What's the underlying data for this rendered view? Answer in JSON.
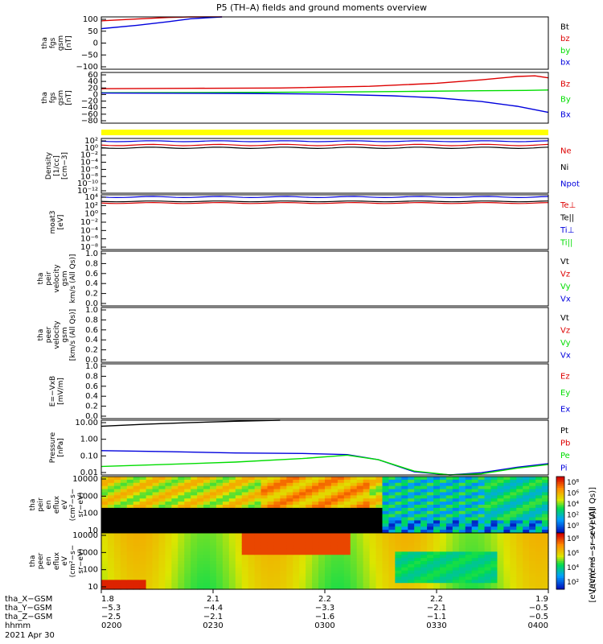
{
  "title": "P5 (TH–A) fields and ground moments overview",
  "colors": {
    "black": "#000000",
    "red": "#dd0000",
    "green": "#00dd00",
    "blue": "#0000dd",
    "yellow": "#ffff00",
    "orange": "#ff9a00",
    "darkred": "#cc0000"
  },
  "chart_data": [
    {
      "type": "line",
      "panel": "fgs_gsm",
      "ylabel": [
        "tha",
        "fgs",
        "gsm",
        "[nT]"
      ],
      "ylim": [
        -100,
        100
      ],
      "yticks": [
        "100",
        "50",
        "0",
        "−50",
        "−100"
      ],
      "legend": [
        {
          "label": "Bt",
          "color": "black"
        },
        {
          "label": "bz",
          "color": "red"
        },
        {
          "label": "by",
          "color": "green"
        },
        {
          "label": "bx",
          "color": "blue"
        }
      ],
      "series": [
        {
          "name": "bz",
          "color": "red",
          "x": [
            0,
            0.08,
            0.15,
            0.2,
            0.27
          ],
          "values": [
            85,
            92,
            98,
            104,
            112
          ]
        },
        {
          "name": "bx",
          "color": "blue",
          "x": [
            0,
            0.08,
            0.15,
            0.2,
            0.27
          ],
          "values": [
            55,
            68,
            82,
            93,
            104
          ]
        }
      ]
    },
    {
      "type": "line",
      "panel": "fgs_gsm_zoom",
      "ylabel": [
        "tha",
        "fgs",
        "gsm",
        "[nT]"
      ],
      "ylim": [
        -90,
        60
      ],
      "yticks": [
        "60",
        "40",
        "20",
        "0",
        "−20",
        "−40",
        "−60",
        "−80"
      ],
      "legend": [
        {
          "label": "Bz",
          "color": "red"
        },
        {
          "label": "By",
          "color": "green"
        },
        {
          "label": "Bx",
          "color": "blue"
        }
      ],
      "series": [
        {
          "name": "Bz",
          "color": "red",
          "x": [
            0,
            0.2,
            0.4,
            0.6,
            0.75,
            0.85,
            0.93,
            0.97,
            1
          ],
          "values": [
            12,
            13,
            14,
            19,
            28,
            38,
            48,
            50,
            44
          ]
        },
        {
          "name": "By",
          "color": "green",
          "x": [
            0,
            0.3,
            0.5,
            0.7,
            0.85,
            0.95,
            1
          ],
          "values": [
            0,
            1,
            2,
            4,
            6,
            7,
            8
          ]
        },
        {
          "name": "Bx",
          "color": "blue",
          "x": [
            0,
            0.3,
            0.5,
            0.65,
            0.75,
            0.85,
            0.93,
            1
          ],
          "values": [
            -1,
            -2,
            -4,
            -9,
            -15,
            -26,
            -40,
            -58
          ]
        }
      ]
    },
    {
      "type": "line",
      "panel": "density",
      "ylabel": [
        "Density",
        "[1/cc]",
        "[cm−3]"
      ],
      "yscale": "log",
      "yticks": [
        "10²",
        "10⁰",
        "10⁻²",
        "10⁻⁴",
        "10⁻⁶",
        "10⁻⁸",
        "10⁻¹⁰",
        "10⁻¹²"
      ],
      "legend": [
        {
          "label": "Ne",
          "color": "red"
        },
        {
          "label": "Ni",
          "color": "black"
        },
        {
          "label": "Npot",
          "color": "blue"
        }
      ]
    },
    {
      "type": "line",
      "panel": "temperature",
      "ylabel": [
        "moat3",
        "[eV]"
      ],
      "yscale": "log",
      "yticks": [
        "10⁴",
        "10²",
        "10⁰",
        "10⁻²",
        "10⁻⁴",
        "10⁻⁶",
        "10⁻⁸"
      ],
      "legend": [
        {
          "label": "Te⊥",
          "color": "red"
        },
        {
          "label": "Te||",
          "color": "black"
        },
        {
          "label": "Ti⊥",
          "color": "blue"
        },
        {
          "label": "Ti||",
          "color": "green"
        }
      ]
    },
    {
      "type": "line",
      "panel": "peir_velocity",
      "ylabel": [
        "tha",
        "peir",
        "velocity",
        "gsm",
        "km/s (All Qs)]"
      ],
      "ylim": [
        0,
        1
      ],
      "yticks": [
        "1.0",
        "0.8",
        "0.6",
        "0.4",
        "0.2",
        "0.0"
      ],
      "legend": [
        {
          "label": "Vt",
          "color": "black"
        },
        {
          "label": "Vz",
          "color": "red"
        },
        {
          "label": "Vy",
          "color": "green"
        },
        {
          "label": "Vx",
          "color": "blue"
        }
      ]
    },
    {
      "type": "line",
      "panel": "peer_velocity",
      "ylabel": [
        "tha",
        "peer",
        "velocity",
        "gsm",
        "[km/s (All Qs)]"
      ],
      "ylim": [
        0,
        1
      ],
      "yticks": [
        "1.0",
        "0.8",
        "0.6",
        "0.4",
        "0.2",
        "0.0"
      ],
      "legend": [
        {
          "label": "Vt",
          "color": "black"
        },
        {
          "label": "Vz",
          "color": "red"
        },
        {
          "label": "Vy",
          "color": "green"
        },
        {
          "label": "Vx",
          "color": "blue"
        }
      ]
    },
    {
      "type": "line",
      "panel": "efield",
      "ylabel": [
        "E=−VxB",
        "[mV/m]"
      ],
      "ylim": [
        0,
        1
      ],
      "yticks": [
        "1.0",
        "0.8",
        "0.6",
        "0.4",
        "0.2",
        "0.0"
      ],
      "legend": [
        {
          "label": "Ez",
          "color": "red"
        },
        {
          "label": "Ey",
          "color": "green"
        },
        {
          "label": "Ex",
          "color": "blue"
        }
      ]
    },
    {
      "type": "line",
      "panel": "pressure",
      "ylabel": [
        "Pressure",
        "[nPa]"
      ],
      "yscale": "log",
      "ylim": [
        0.005,
        20
      ],
      "yticks": [
        "10.00",
        "1.00",
        "0.10",
        "0.01"
      ],
      "legend": [
        {
          "label": "Pt",
          "color": "black"
        },
        {
          "label": "Pb",
          "color": "red"
        },
        {
          "label": "Pe",
          "color": "green"
        },
        {
          "label": "Pi",
          "color": "blue"
        }
      ],
      "series": [
        {
          "name": "Pt",
          "color": "black",
          "x": [
            0,
            0.1,
            0.2,
            0.3,
            0.4
          ],
          "values": [
            8,
            11,
            14,
            17,
            20
          ]
        },
        {
          "name": "Pi",
          "color": "blue",
          "x": [
            0,
            0.15,
            0.3,
            0.45,
            0.55,
            0.62,
            0.7,
            0.78,
            0.85,
            0.93,
            1
          ],
          "values": [
            0.2,
            0.17,
            0.14,
            0.13,
            0.11,
            0.05,
            0.008,
            0.005,
            0.007,
            0.016,
            0.028
          ]
        },
        {
          "name": "Pe",
          "color": "green",
          "x": [
            0,
            0.15,
            0.3,
            0.45,
            0.55,
            0.62,
            0.7,
            0.78,
            0.85,
            0.93,
            1
          ],
          "values": [
            0.018,
            0.025,
            0.035,
            0.06,
            0.1,
            0.05,
            0.009,
            0.005,
            0.006,
            0.014,
            0.024
          ]
        }
      ]
    },
    {
      "type": "heatmap",
      "panel": "peir_eflux",
      "ylabel": [
        "tha",
        "peir",
        "en",
        "eflux",
        "eV",
        "(cm²−s−",
        "sr−eV)"
      ],
      "yticks": [
        "10000",
        "1000",
        "100",
        "10"
      ],
      "colorbar_ticks": [
        "10⁸",
        "10⁶",
        "10⁴",
        "10²",
        "10⁰"
      ]
    },
    {
      "type": "heatmap",
      "panel": "peer_eflux",
      "ylabel": [
        "tha",
        "peer",
        "en",
        "eflux",
        "eV",
        "(cm²−s−",
        "sr−eV)"
      ],
      "yticks": [
        "10000",
        "1000",
        "100",
        "10"
      ],
      "colorbar_ticks": [
        "10⁸",
        "10⁶",
        "10⁴",
        "10²"
      ],
      "colorbar_label": "[eV/(cm²−s−sr−eV)]",
      "colorbar_label_2": "[eV/(cm²−s−sr−eV) (All Qs)]"
    }
  ],
  "xaxis": {
    "rows": [
      {
        "label": "tha_X−GSM",
        "values": [
          "1.8",
          "2.1",
          "2.2",
          "2.2",
          "1.9"
        ]
      },
      {
        "label": "tha_Y−GSM",
        "values": [
          "−5.3",
          "−4.4",
          "−3.3",
          "−2.1",
          "−0.5"
        ]
      },
      {
        "label": "tha_Z−GSM",
        "values": [
          "−2.5",
          "−2.1",
          "−1.6",
          "−1.1",
          "−0.5"
        ]
      },
      {
        "label": "hhmm",
        "values": [
          "0200",
          "0230",
          "0300",
          "0330",
          "0400"
        ]
      }
    ],
    "date": "2021 Apr 30"
  }
}
